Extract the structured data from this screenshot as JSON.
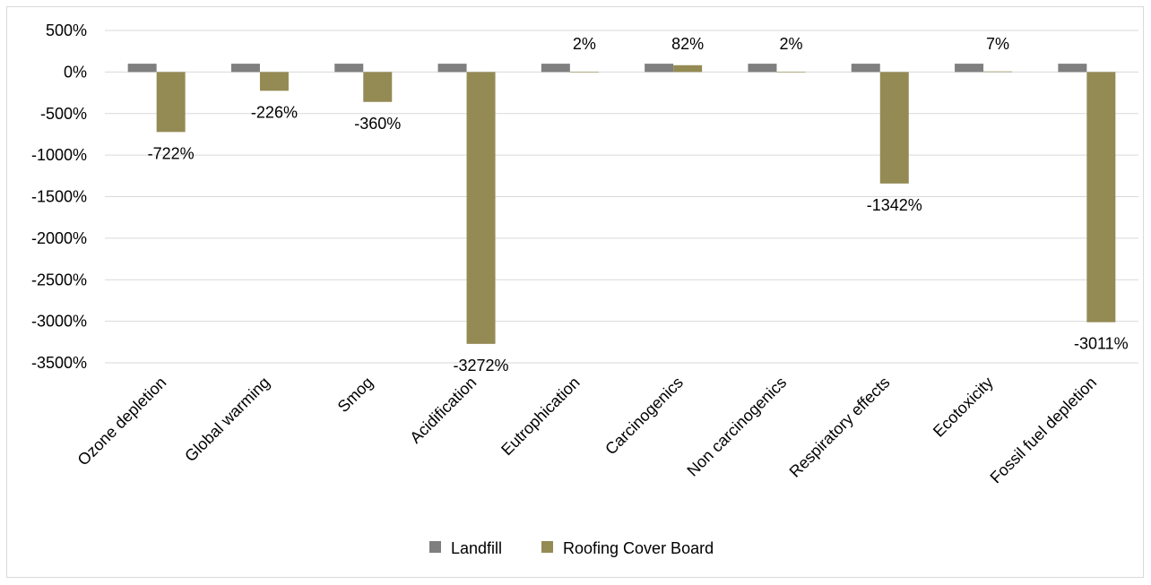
{
  "chart_data": {
    "type": "bar",
    "categories": [
      "Ozone depletion",
      "Global warming",
      "Smog",
      "Acidification",
      "Eutrophication",
      "Carcinogenics",
      "Non carcinogenics",
      "Respiratory effects",
      "Ecotoxicity",
      "Fossil fuel depletion"
    ],
    "series": [
      {
        "name": "Landfill",
        "color": "#7f7f7f",
        "values": [
          100,
          100,
          100,
          100,
          100,
          100,
          100,
          100,
          100,
          100
        ],
        "data_labels": [
          "",
          "",
          "",
          "",
          "",
          "",
          "",
          "",
          "",
          ""
        ]
      },
      {
        "name": "Roofing Cover Board",
        "color": "#948a54",
        "values": [
          -722,
          -226,
          -360,
          -3272,
          2,
          82,
          2,
          -1342,
          7,
          -3011
        ],
        "data_labels": [
          "-722%",
          "-226%",
          "-360%",
          "-3272%",
          "2%",
          "82%",
          "2%",
          "-1342%",
          "7%",
          "-3011%"
        ]
      }
    ],
    "title": "",
    "xlabel": "",
    "ylabel": "",
    "ylim": [
      -3500,
      500
    ],
    "y_ticks": [
      500,
      0,
      -500,
      -1000,
      -1500,
      -2000,
      -2500,
      -3000,
      -3500
    ],
    "y_tick_labels": [
      "500%",
      "0%",
      "-500%",
      "-1000%",
      "-1500%",
      "-2000%",
      "-2500%",
      "-3000%",
      "-3500%"
    ],
    "grid": true,
    "legend_position": "bottom"
  }
}
